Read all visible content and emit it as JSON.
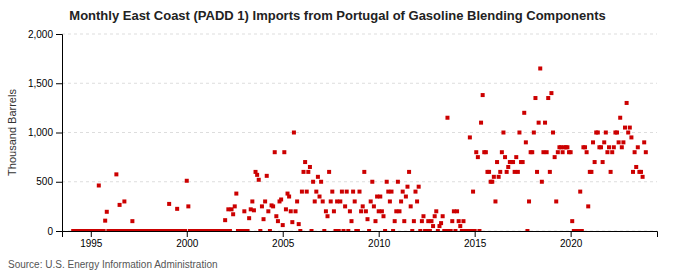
{
  "chart_data": {
    "type": "scatter",
    "title": "Monthly East Coast (PADD 1) Imports from Portugal of Gasoline Blending Components",
    "y_label": "Thousand Barrels",
    "source": "Source: U.S. Energy Information Administration",
    "color": "#cc0000",
    "marker": "square",
    "grid": true,
    "xlim": [
      1993.5,
      2024.5
    ],
    "xticks": [
      1995,
      2000,
      2005,
      2010,
      2015,
      2020
    ],
    "ylim": [
      0,
      2000
    ],
    "yticks": [
      0,
      500,
      {
        "value": 1000,
        "label": "1,000"
      },
      {
        "value": 1500,
        "label": "1,500"
      },
      {
        "value": 2000,
        "label": "2,000"
      }
    ],
    "x": [
      1994.083,
      1994.167,
      1994.25,
      1994.333,
      1994.417,
      1994.5,
      1994.583,
      1994.667,
      1994.75,
      1994.833,
      1994.917,
      1995.0,
      1995.083,
      1995.167,
      1995.25,
      1995.333,
      1995.417,
      1995.5,
      1995.583,
      1995.667,
      1995.75,
      1995.833,
      1995.917,
      1996.0,
      1996.083,
      1996.167,
      1996.25,
      1996.333,
      1996.417,
      1996.5,
      1996.583,
      1996.667,
      1996.75,
      1996.833,
      1996.917,
      1997.0,
      1997.083,
      1997.167,
      1997.25,
      1997.333,
      1997.417,
      1997.5,
      1997.583,
      1997.667,
      1997.75,
      1997.833,
      1997.917,
      1998.0,
      1998.083,
      1998.167,
      1998.25,
      1998.333,
      1998.417,
      1998.5,
      1998.583,
      1998.667,
      1998.75,
      1998.833,
      1998.917,
      1999.0,
      1999.083,
      1999.167,
      1999.25,
      1999.333,
      1999.417,
      1999.5,
      1999.583,
      1999.667,
      1999.75,
      1999.833,
      1999.917,
      2000.0,
      2000.083,
      2000.167,
      2000.25,
      2000.333,
      2000.417,
      2000.5,
      2000.583,
      2000.667,
      2000.75,
      2000.833,
      2000.917,
      2001.0,
      2001.083,
      2001.167,
      2001.25,
      2001.333,
      2001.417,
      2001.5,
      2001.583,
      2001.667,
      2001.75,
      2001.833,
      2001.917,
      2002.0,
      2002.083,
      2002.167,
      2002.25,
      2002.333,
      2002.417,
      2002.5,
      2002.583,
      2002.667,
      2002.75,
      2002.833,
      2002.917,
      2003.0,
      2003.083,
      2003.167,
      2003.25,
      2003.333,
      2003.417,
      2003.5,
      2003.583,
      2003.667,
      2003.75,
      2003.833,
      2003.917,
      2004.0,
      2004.083,
      2004.167,
      2004.25,
      2004.333,
      2004.417,
      2004.5,
      2004.583,
      2004.667,
      2004.75,
      2004.833,
      2004.917,
      2005.0,
      2005.083,
      2005.167,
      2005.25,
      2005.333,
      2005.417,
      2005.5,
      2005.583,
      2005.667,
      2005.75,
      2005.833,
      2005.917,
      2006.0,
      2006.083,
      2006.167,
      2006.25,
      2006.333,
      2006.417,
      2006.5,
      2006.583,
      2006.667,
      2006.75,
      2006.833,
      2006.917,
      2007.0,
      2007.083,
      2007.167,
      2007.25,
      2007.333,
      2007.417,
      2007.5,
      2007.583,
      2007.667,
      2007.75,
      2007.833,
      2007.917,
      2008.0,
      2008.083,
      2008.167,
      2008.25,
      2008.333,
      2008.417,
      2008.5,
      2008.583,
      2008.667,
      2008.75,
      2008.833,
      2008.917,
      2009.0,
      2009.083,
      2009.167,
      2009.25,
      2009.333,
      2009.417,
      2009.5,
      2009.583,
      2009.667,
      2009.75,
      2009.833,
      2009.917,
      2010.0,
      2010.083,
      2010.167,
      2010.25,
      2010.333,
      2010.417,
      2010.5,
      2010.583,
      2010.667,
      2010.75,
      2010.833,
      2010.917,
      2011.0,
      2011.083,
      2011.167,
      2011.25,
      2011.333,
      2011.417,
      2011.5,
      2011.583,
      2011.667,
      2011.75,
      2011.833,
      2011.917,
      2012.0,
      2012.083,
      2012.167,
      2012.25,
      2012.333,
      2012.417,
      2012.5,
      2012.583,
      2012.667,
      2012.75,
      2012.833,
      2012.917,
      2013.0,
      2013.083,
      2013.167,
      2013.25,
      2013.333,
      2013.417,
      2013.5,
      2013.583,
      2013.667,
      2013.75,
      2013.833,
      2013.917,
      2014.0,
      2014.083,
      2014.167,
      2014.25,
      2014.333,
      2014.417,
      2014.5,
      2014.583,
      2014.667,
      2014.75,
      2014.833,
      2014.917,
      2015.0,
      2015.083,
      2015.167,
      2015.25,
      2015.333,
      2015.417,
      2015.5,
      2015.583,
      2015.667,
      2015.75,
      2015.833,
      2015.917,
      2016.0,
      2016.083,
      2016.167,
      2016.25,
      2016.333,
      2016.417,
      2016.5,
      2016.583,
      2016.667,
      2016.75,
      2016.833,
      2016.917,
      2017.0,
      2017.083,
      2017.167,
      2017.25,
      2017.333,
      2017.417,
      2017.5,
      2017.583,
      2017.667,
      2017.75,
      2017.833,
      2017.917,
      2018.0,
      2018.083,
      2018.167,
      2018.25,
      2018.333,
      2018.417,
      2018.5,
      2018.583,
      2018.667,
      2018.75,
      2018.833,
      2018.917,
      2019.0,
      2019.083,
      2019.167,
      2019.25,
      2019.333,
      2019.417,
      2019.5,
      2019.583,
      2019.667,
      2019.75,
      2019.833,
      2019.917,
      2020.0,
      2020.083,
      2020.167,
      2020.25,
      2020.333,
      2020.417,
      2020.5,
      2020.583,
      2020.667,
      2020.75,
      2020.833,
      2020.917,
      2021.0,
      2021.083,
      2021.167,
      2021.25,
      2021.333,
      2021.417,
      2021.5,
      2021.583,
      2021.667,
      2021.75,
      2021.833,
      2021.917,
      2022.0,
      2022.083,
      2022.167,
      2022.25,
      2022.333,
      2022.417,
      2022.5,
      2022.583,
      2022.667,
      2022.75,
      2022.833,
      2022.917,
      2023.0,
      2023.083,
      2023.167,
      2023.25,
      2023.333,
      2023.417,
      2023.5,
      2023.583,
      2023.667,
      2023.75,
      2023.833,
      2023.917
    ],
    "values": [
      0,
      0,
      0,
      0,
      0,
      0,
      0,
      0,
      0,
      0,
      0,
      0,
      0,
      0,
      0,
      0,
      462,
      0,
      0,
      0,
      105,
      195,
      0,
      0,
      0,
      0,
      0,
      575,
      0,
      265,
      0,
      0,
      300,
      0,
      0,
      0,
      0,
      100,
      0,
      0,
      0,
      0,
      0,
      0,
      0,
      0,
      0,
      0,
      0,
      0,
      0,
      0,
      0,
      0,
      0,
      0,
      0,
      0,
      0,
      0,
      275,
      0,
      0,
      0,
      0,
      225,
      0,
      0,
      0,
      0,
      0,
      510,
      250,
      0,
      0,
      0,
      0,
      0,
      0,
      0,
      0,
      0,
      0,
      0,
      0,
      0,
      0,
      0,
      0,
      0,
      0,
      0,
      0,
      0,
      0,
      110,
      0,
      220,
      0,
      220,
      170,
      250,
      380,
      0,
      0,
      0,
      0,
      200,
      0,
      0,
      130,
      220,
      300,
      210,
      600,
      570,
      520,
      0,
      250,
      120,
      300,
      560,
      200,
      0,
      260,
      250,
      800,
      150,
      100,
      300,
      320,
      60,
      800,
      220,
      380,
      350,
      200,
      90,
      1000,
      200,
      300,
      70,
      0,
      400,
      600,
      700,
      400,
      600,
      650,
      0,
      500,
      300,
      400,
      550,
      350,
      500,
      300,
      0,
      200,
      150,
      600,
      300,
      400,
      200,
      0,
      300,
      0,
      300,
      400,
      0,
      250,
      400,
      0,
      200,
      100,
      400,
      300,
      0,
      0,
      400,
      200,
      250,
      600,
      200,
      120,
      0,
      300,
      500,
      250,
      100,
      350,
      200,
      350,
      200,
      150,
      0,
      500,
      400,
      300,
      400,
      0,
      100,
      200,
      500,
      200,
      300,
      400,
      100,
      350,
      450,
      600,
      250,
      0,
      100,
      400,
      300,
      450,
      0,
      100,
      150,
      0,
      0,
      100,
      0,
      100,
      50,
      150,
      200,
      0,
      50,
      80,
      150,
      0,
      0,
      1150,
      0,
      0,
      100,
      200,
      0,
      200,
      100,
      50,
      0,
      100,
      0,
      0,
      0,
      950,
      0,
      400,
      0,
      800,
      750,
      0,
      1100,
      1380,
      800,
      800,
      600,
      600,
      500,
      500,
      550,
      300,
      700,
      550,
      600,
      800,
      1000,
      750,
      600,
      650,
      700,
      700,
      700,
      600,
      750,
      600,
      1000,
      700,
      700,
      1200,
      900,
      0,
      300,
      800,
      800,
      1000,
      1350,
      600,
      1100,
      1650,
      500,
      800,
      1100,
      800,
      1350,
      600,
      1400,
      1000,
      750,
      300,
      800,
      850,
      850,
      800,
      850,
      850,
      850,
      800,
      800,
      100,
      0,
      0,
      0,
      0,
      400,
      0,
      850,
      850,
      800,
      250,
      600,
      600,
      900,
      700,
      1000,
      1000,
      850,
      850,
      700,
      900,
      1000,
      800,
      850,
      600,
      800,
      850,
      1000,
      1000,
      900,
      1150,
      850,
      900,
      1050,
      1300,
      1000,
      1050,
      950,
      600,
      800,
      650,
      850,
      600,
      600,
      550,
      900,
      800
    ]
  }
}
